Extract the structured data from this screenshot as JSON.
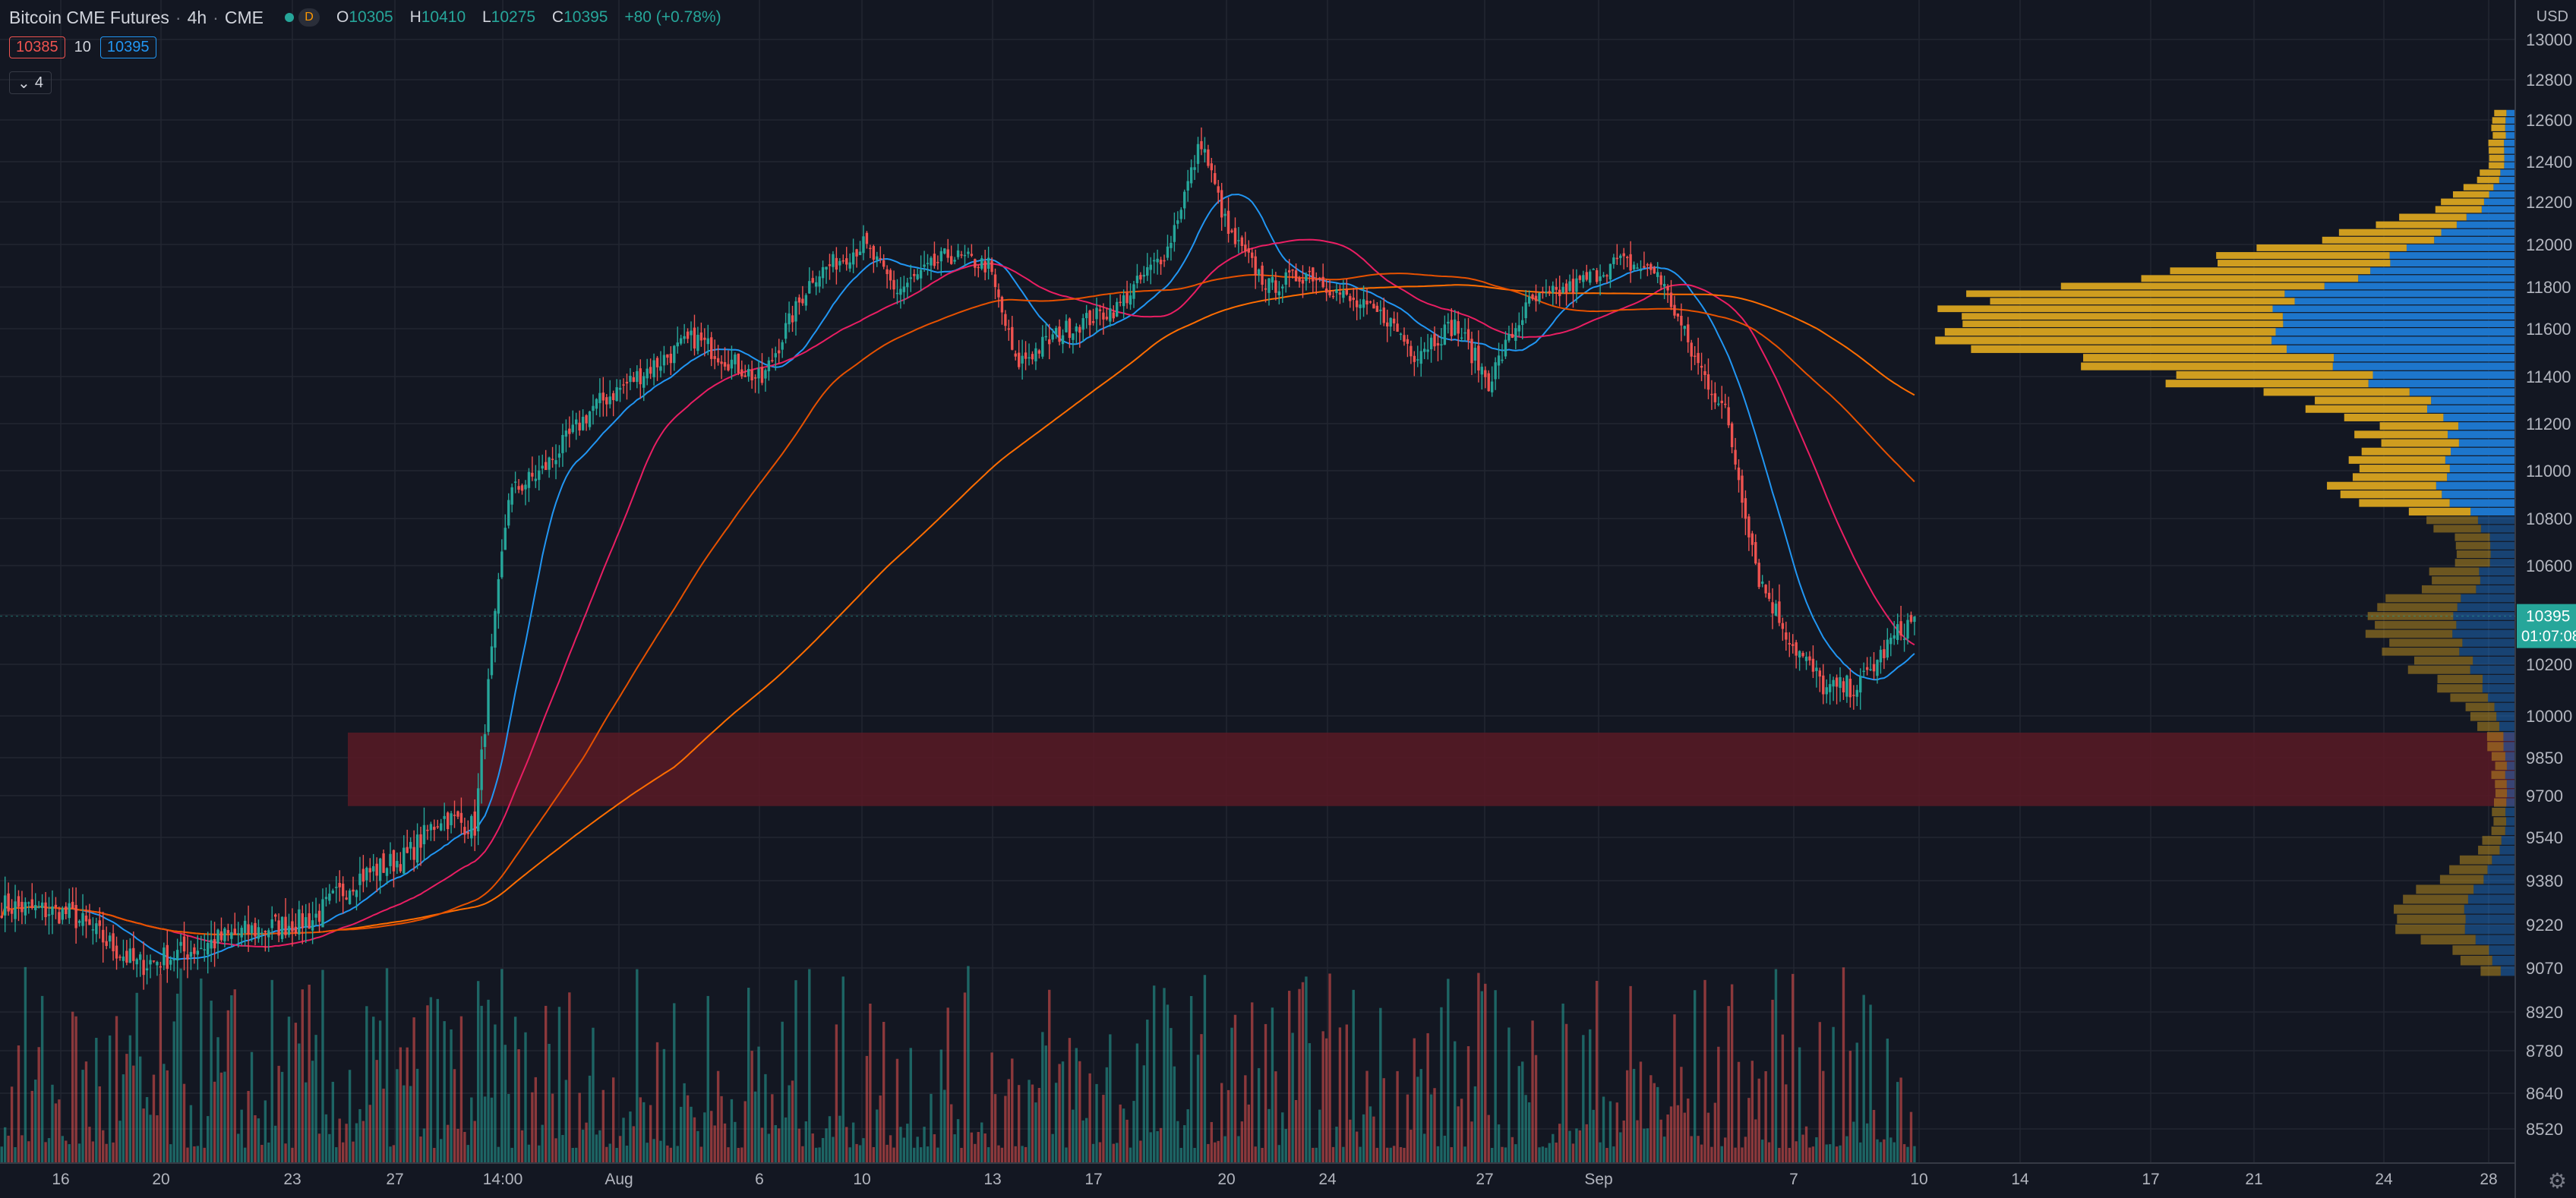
{
  "legend": {
    "symbol": "Bitcoin CME Futures",
    "interval": "4h",
    "exchange": "CME",
    "badge": "D",
    "open_label": "O",
    "open": "10305",
    "high_label": "H",
    "high": "10410",
    "low_label": "L",
    "low": "10275",
    "close_label": "C",
    "close": "10395",
    "change": "+80 (+0.78%)"
  },
  "pricebar": {
    "bid": "10385",
    "spread": "10",
    "ask": "10395"
  },
  "indicator_toggle": {
    "count": "4"
  },
  "price_axis": {
    "unit": "USD",
    "current_price": "10395",
    "countdown": "01:07:08"
  },
  "colors": {
    "background": "#131722",
    "grid": "#222631",
    "up": "#26a69a",
    "down": "#ef5350",
    "ma_fast": "#2196f3",
    "ma_mid": "#e91e63",
    "ma_slow1": "#ff6d00",
    "ma_slow2": "#e65100",
    "zone": "#5b1a24",
    "profile_up": "#1e7bd6",
    "profile_down": "#d9a420"
  },
  "chart_data": {
    "type": "candlestick",
    "ylim": [
      8450,
      13080
    ],
    "y_ticks": [
      "13000",
      "12800",
      "12600",
      "12400",
      "12200",
      "12000",
      "11800",
      "11600",
      "11400",
      "11200",
      "11000",
      "10800",
      "10600",
      "10400",
      "10200",
      "10000",
      "9850",
      "9700",
      "9540",
      "9380",
      "9220",
      "9070",
      "8920",
      "8780",
      "8640",
      "8520"
    ],
    "x_ticks": [
      "16",
      "20",
      "23",
      "27",
      "14:00",
      "Aug",
      "6",
      "10",
      "13",
      "17",
      "20",
      "24",
      "27",
      "Sep",
      "7",
      "10",
      "14",
      "17",
      "21",
      "24",
      "28"
    ],
    "price_anchors": [
      [
        0,
        9290
      ],
      [
        20,
        9260
      ],
      [
        40,
        9080
      ],
      [
        50,
        9110
      ],
      [
        70,
        9190
      ],
      [
        92,
        9240
      ],
      [
        105,
        9390
      ],
      [
        120,
        9470
      ],
      [
        130,
        9620
      ],
      [
        140,
        9580
      ],
      [
        150,
        10900
      ],
      [
        160,
        11000
      ],
      [
        175,
        11270
      ],
      [
        190,
        11420
      ],
      [
        205,
        11560
      ],
      [
        225,
        11380
      ],
      [
        240,
        11850
      ],
      [
        255,
        12000
      ],
      [
        265,
        11780
      ],
      [
        280,
        11950
      ],
      [
        292,
        11900
      ],
      [
        300,
        11450
      ],
      [
        315,
        11600
      ],
      [
        330,
        11700
      ],
      [
        345,
        11980
      ],
      [
        355,
        12500
      ],
      [
        363,
        12050
      ],
      [
        375,
        11800
      ],
      [
        387,
        11870
      ],
      [
        400,
        11720
      ],
      [
        410,
        11650
      ],
      [
        418,
        11500
      ],
      [
        430,
        11620
      ],
      [
        440,
        11380
      ],
      [
        452,
        11720
      ],
      [
        465,
        11800
      ],
      [
        478,
        11920
      ],
      [
        490,
        11870
      ],
      [
        500,
        11500
      ],
      [
        510,
        11250
      ],
      [
        520,
        10550
      ],
      [
        530,
        10280
      ],
      [
        540,
        10100
      ],
      [
        550,
        10120
      ],
      [
        560,
        10310
      ],
      [
        567,
        10395
      ]
    ],
    "support_zone": [
      9660,
      9940
    ],
    "ma_lengths": [
      20,
      50,
      200,
      100
    ],
    "ma_colors": [
      "#2196f3",
      "#e91e63",
      "#ff6d00",
      "#e65100"
    ],
    "volume_profile_bins": 100
  }
}
